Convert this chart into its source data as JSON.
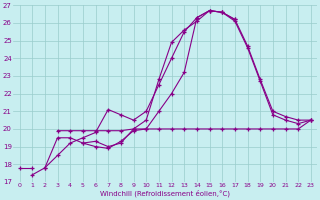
{
  "xlabel": "Windchill (Refroidissement éolien,°C)",
  "xlim": [
    -0.5,
    23.5
  ],
  "ylim": [
    17,
    27
  ],
  "yticks": [
    17,
    18,
    19,
    20,
    21,
    22,
    23,
    24,
    25,
    26,
    27
  ],
  "xticks": [
    0,
    1,
    2,
    3,
    4,
    5,
    6,
    7,
    8,
    9,
    10,
    11,
    12,
    13,
    14,
    15,
    16,
    17,
    18,
    19,
    20,
    21,
    22,
    23
  ],
  "line_color": "#880088",
  "background_color": "#c8eef0",
  "grid_color": "#99cccc",
  "lines_clean": [
    {
      "segments": [
        {
          "x": [
            0,
            1
          ],
          "y": [
            17.8,
            17.8
          ]
        },
        {
          "x": [
            3,
            4,
            5,
            6,
            7,
            8,
            9,
            10,
            11,
            12,
            13,
            14,
            15,
            16,
            17,
            18,
            19,
            20,
            21,
            22,
            23
          ],
          "y": [
            19.9,
            19.9,
            19.9,
            19.9,
            19.9,
            19.9,
            20.0,
            20.0,
            20.0,
            20.0,
            20.0,
            20.0,
            20.0,
            20.0,
            20.0,
            20.0,
            20.0,
            20.0,
            20.0,
            20.0,
            20.5
          ]
        }
      ]
    },
    {
      "segments": [
        {
          "x": [
            1,
            2,
            3,
            4,
            5,
            6,
            7,
            8,
            9,
            10,
            11,
            12,
            13,
            14,
            15,
            16,
            17
          ],
          "y": [
            17.4,
            17.8,
            19.5,
            19.5,
            19.2,
            19.0,
            18.9,
            19.3,
            19.9,
            20.0,
            21.0,
            22.0,
            23.2,
            26.3,
            26.7,
            26.6,
            26.2
          ]
        }
      ]
    },
    {
      "segments": [
        {
          "x": [
            5,
            6,
            7,
            8,
            9,
            10,
            11,
            12,
            13,
            14,
            15,
            16,
            17,
            18,
            19,
            20,
            21,
            22,
            23
          ],
          "y": [
            19.2,
            19.3,
            19.0,
            19.2,
            20.0,
            20.5,
            22.8,
            24.9,
            25.6,
            26.1,
            26.7,
            26.6,
            26.2,
            24.7,
            22.8,
            21.0,
            20.7,
            20.5,
            20.5
          ]
        }
      ]
    },
    {
      "segments": [
        {
          "x": [
            2,
            3,
            4,
            5,
            6,
            7,
            8,
            9,
            10,
            11,
            12,
            13,
            14,
            15,
            16,
            17,
            18,
            19,
            20,
            21,
            22,
            23
          ],
          "y": [
            17.8,
            18.5,
            19.2,
            19.5,
            19.8,
            21.1,
            20.8,
            20.5,
            21.0,
            22.5,
            24.0,
            25.5,
            26.3,
            26.7,
            26.6,
            26.1,
            24.6,
            22.7,
            20.8,
            20.5,
            20.3,
            20.5
          ]
        }
      ]
    }
  ]
}
